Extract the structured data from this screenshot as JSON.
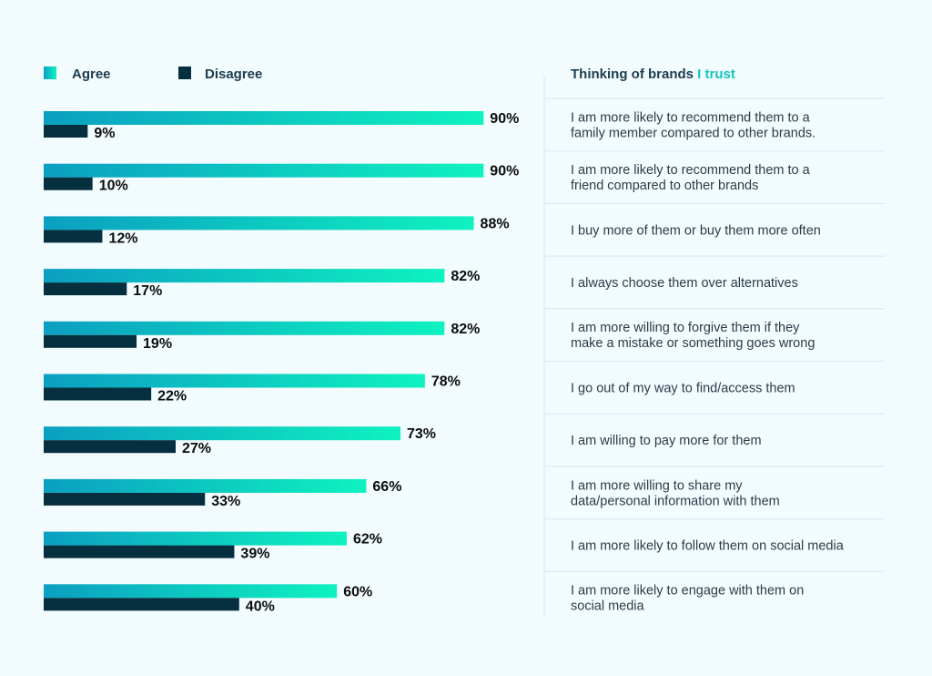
{
  "legend": {
    "agree": "Agree",
    "disagree": "Disagree"
  },
  "header": {
    "prefix": "Thinking of brands ",
    "highlight": "I trust"
  },
  "colors": {
    "agree_start": "#0b9fc1",
    "agree_end": "#0ef2c0",
    "disagree": "#06303f",
    "background": "#f2fbfd",
    "header_highlight": "#14c6c0",
    "text_dark": "#1c3d50",
    "divider": "#dbe7ea"
  },
  "chart_data": {
    "type": "bar",
    "orientation": "horizontal",
    "xlim": [
      0,
      100
    ],
    "grid": false,
    "legend_position": "top-left",
    "categories": [
      [
        "I am more likely to recommend them to a",
        "family member compared to  other brands."
      ],
      [
        "I am more likely to recommend them to a",
        "friend compared to other brands"
      ],
      [
        "I buy more of them or buy them more often"
      ],
      [
        "I always choose them over alternatives"
      ],
      [
        "I am more willing to forgive them if they",
        "make a mistake or something goes wrong"
      ],
      [
        "I go out of my way to find/access them"
      ],
      [
        "I am willing to pay more for them"
      ],
      [
        "I am more willing to share my",
        "data/personal information with them"
      ],
      [
        "I am more likely to follow them on social media"
      ],
      [
        "I am more likely to engage with them on",
        "social media"
      ]
    ],
    "series": [
      {
        "name": "Agree",
        "values": [
          90,
          90,
          88,
          82,
          82,
          78,
          73,
          66,
          62,
          60
        ]
      },
      {
        "name": "Disagree",
        "values": [
          9,
          10,
          12,
          17,
          19,
          22,
          27,
          33,
          39,
          40
        ]
      }
    ],
    "value_suffix": "%"
  }
}
